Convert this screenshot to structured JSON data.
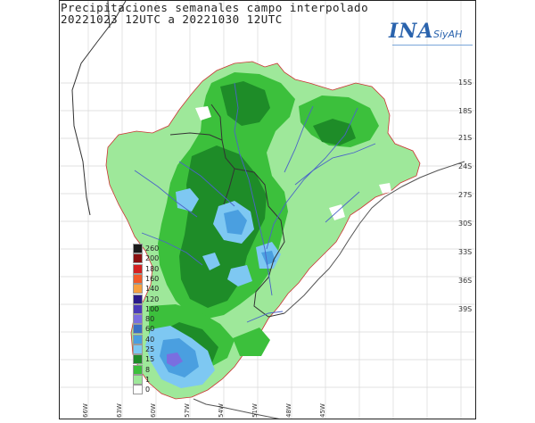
{
  "title": {
    "line1": "Precipitaciones semanales campo interpolado",
    "line2": "20221023 12UTC a 20221030 12UTC"
  },
  "logo": {
    "name": "INA",
    "subtitle": "SiyAH"
  },
  "lat_labels": [
    "15S",
    "18S",
    "21S",
    "24S",
    "27S",
    "30S",
    "33S",
    "36S",
    "39S"
  ],
  "lon_labels": [
    "66W",
    "63W",
    "60W",
    "57W",
    "54W",
    "51W",
    "48W",
    "45W"
  ],
  "legend": [
    {
      "label": "260",
      "color": "#1a1a1a"
    },
    {
      "label": "200",
      "color": "#8b1010"
    },
    {
      "label": "180",
      "color": "#d42020"
    },
    {
      "label": "160",
      "color": "#f25a2a"
    },
    {
      "label": "140",
      "color": "#f7a040"
    },
    {
      "label": "120",
      "color": "#2a1a8a"
    },
    {
      "label": "100",
      "color": "#4a3ab8"
    },
    {
      "label": "80",
      "color": "#7a6ee0"
    },
    {
      "label": "60",
      "color": "#3a6fc4"
    },
    {
      "label": "40",
      "color": "#4a9fe0"
    },
    {
      "label": "25",
      "color": "#7ec8f2"
    },
    {
      "label": "15",
      "color": "#1e8c28"
    },
    {
      "label": "8",
      "color": "#3cc03c"
    },
    {
      "label": "1",
      "color": "#9ee89a"
    },
    {
      "label": "0",
      "color": "#ffffff"
    }
  ]
}
